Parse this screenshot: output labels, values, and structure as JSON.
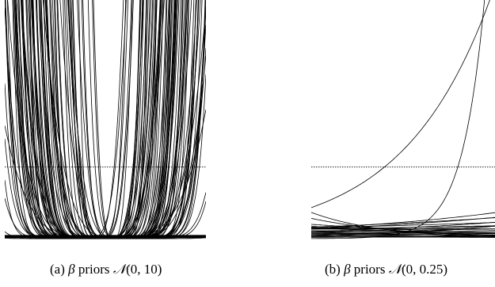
{
  "chart_data": [
    {
      "type": "line",
      "caption": {
        "prefix": "(a)",
        "symbol": "β",
        "text": "priors",
        "dist": "𝒩",
        "params": "(0, 10)"
      },
      "xlabel": "",
      "ylabel": "",
      "axes_visible": false,
      "grid": false,
      "reference_line": {
        "style": "dotted",
        "y": 0.3
      },
      "ylim": [
        0,
        1
      ],
      "xlim": [
        -1,
        1
      ],
      "curve_family": "exp(b1*x + b2*x^2) style prior draws, normalized",
      "num_curves": 90,
      "series_color": "#000000"
    },
    {
      "type": "line",
      "caption": {
        "prefix": "(b)",
        "symbol": "β",
        "text": "priors",
        "dist": "𝒩",
        "params": "(0, 0.25)"
      },
      "xlabel": "",
      "ylabel": "",
      "axes_visible": false,
      "grid": false,
      "reference_line": {
        "style": "dotted",
        "y": 0.3
      },
      "ylim": [
        0,
        1
      ],
      "xlim": [
        0,
        1
      ],
      "curve_family": "exponential prior draws, normalized",
      "num_curves": 30,
      "series_color": "#000000"
    }
  ]
}
